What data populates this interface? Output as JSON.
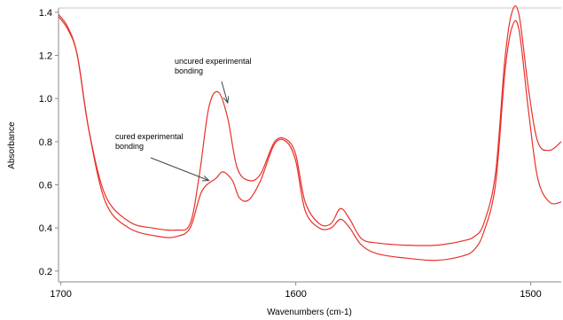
{
  "chart_data": {
    "type": "line",
    "xlabel": "Wavenumbers (cm-1)",
    "ylabel": "Absorbance",
    "xlim": [
      1701,
      1487
    ],
    "ylim": [
      0.15,
      1.42
    ],
    "x_reversed": true,
    "grid": false,
    "x_ticks": [
      1700,
      1600,
      1500
    ],
    "y_ticks": [
      0.2,
      0.4,
      0.6,
      0.8,
      1.0,
      1.2,
      1.4
    ],
    "x_tick_labels": [
      "1700",
      "1600",
      "1500"
    ],
    "y_tick_labels": [
      "0.2",
      "0.4",
      "0.6",
      "0.8",
      "1.0",
      "1.2",
      "1.4"
    ],
    "line_color": "#e8302a",
    "series": [
      {
        "x": [
          1701,
          1697,
          1693,
          1688,
          1681,
          1671,
          1658,
          1651,
          1645,
          1640,
          1634,
          1631,
          1627,
          1624,
          1620,
          1615,
          1609,
          1604,
          1600,
          1596,
          1590,
          1585,
          1581,
          1577,
          1572,
          1565,
          1553,
          1540,
          1529,
          1524,
          1520,
          1515,
          1511,
          1508,
          1505,
          1501,
          1497,
          1492,
          1487
        ],
        "values": [
          1.38,
          1.32,
          1.2,
          0.85,
          0.52,
          0.4,
          0.36,
          0.36,
          0.4,
          0.57,
          0.63,
          0.66,
          0.62,
          0.54,
          0.53,
          0.62,
          0.79,
          0.8,
          0.71,
          0.48,
          0.4,
          0.4,
          0.44,
          0.4,
          0.32,
          0.28,
          0.26,
          0.25,
          0.27,
          0.3,
          0.38,
          0.6,
          1.12,
          1.33,
          1.32,
          0.95,
          0.63,
          0.52,
          0.52
        ]
      },
      {
        "x": [
          1701,
          1697,
          1693,
          1688,
          1681,
          1671,
          1661,
          1651,
          1645,
          1641,
          1637,
          1633,
          1629,
          1625,
          1620,
          1615,
          1609,
          1604,
          1600,
          1596,
          1590,
          1585,
          1581,
          1577,
          1572,
          1565,
          1553,
          1540,
          1529,
          1524,
          1520,
          1515,
          1511,
          1508,
          1505,
          1501,
          1497,
          1492,
          1487
        ],
        "values": [
          1.39,
          1.33,
          1.2,
          0.85,
          0.55,
          0.43,
          0.4,
          0.39,
          0.42,
          0.65,
          0.96,
          1.03,
          0.91,
          0.68,
          0.62,
          0.65,
          0.8,
          0.81,
          0.74,
          0.52,
          0.42,
          0.42,
          0.49,
          0.44,
          0.35,
          0.33,
          0.32,
          0.32,
          0.34,
          0.36,
          0.42,
          0.65,
          1.18,
          1.4,
          1.39,
          1.05,
          0.8,
          0.76,
          0.8
        ]
      }
    ],
    "annotations": [
      {
        "lines": [
          "uncured experimental",
          "bonding"
        ],
        "arrow_to": [
          1629,
          0.98
        ]
      },
      {
        "lines": [
          "cured experimental",
          "bonding"
        ],
        "arrow_to": [
          1637,
          0.62
        ]
      }
    ]
  }
}
